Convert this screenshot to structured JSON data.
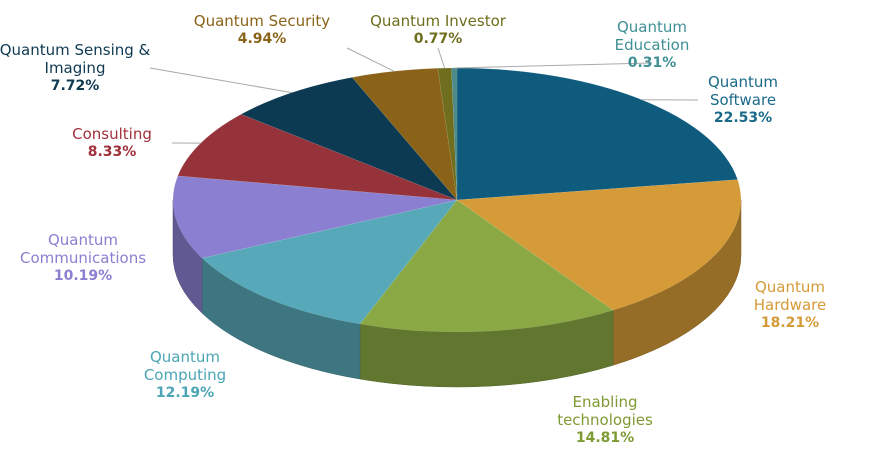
{
  "chart_data": {
    "type": "pie3d",
    "categories": [
      "Quantum Software",
      "Quantum Hardware",
      "Enabling technologies",
      "Quantum Computing",
      "Quantum Communications",
      "Consulting",
      "Quantum Sensing & Imaging",
      "Quantum Security",
      "Quantum Investor",
      "Quantum Education"
    ],
    "values": [
      22.53,
      18.21,
      14.81,
      12.19,
      10.19,
      8.33,
      7.72,
      4.94,
      0.77,
      0.31
    ],
    "value_labels": [
      "22.53%",
      "18.21%",
      "14.81%",
      "12.19%",
      "10.19%",
      "8.33%",
      "7.72%",
      "4.94%",
      "0.77%",
      "0.31%"
    ],
    "colors": [
      "#0e5b7e",
      "#d59b38",
      "#8aa843",
      "#57a8b8",
      "#8a7fd0",
      "#96333a",
      "#0b3a52",
      "#8a6318",
      "#6e6e1e",
      "#4d8a8a"
    ]
  }
}
